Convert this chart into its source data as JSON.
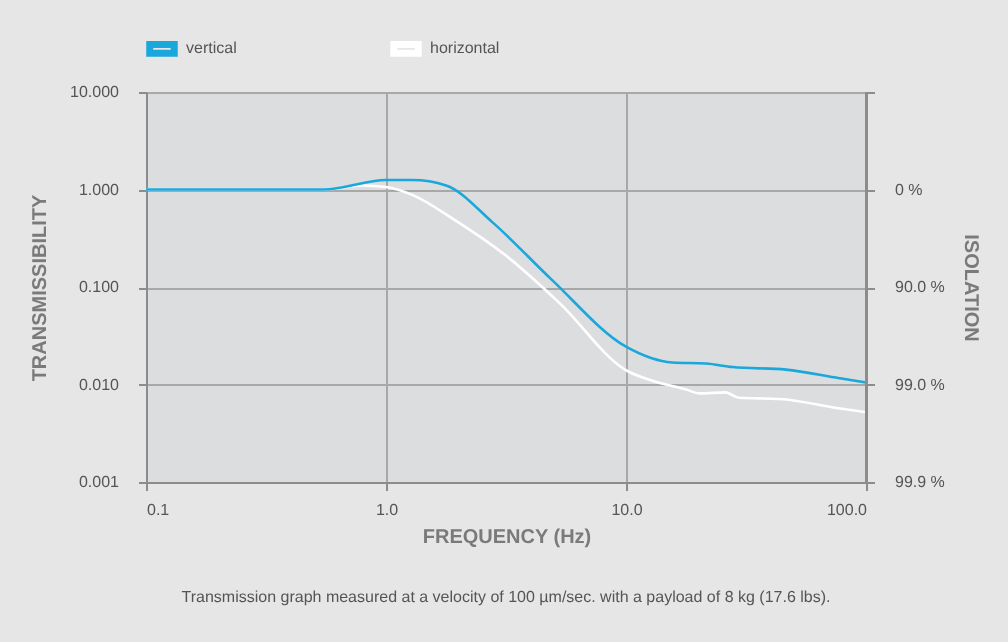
{
  "chart_data": {
    "type": "line",
    "xlabel": "FREQUENCY (Hz)",
    "ylabel": "TRANSMISSIBILITY",
    "y2label": "ISOLATION",
    "annotations": [
      "Transmission graph measured at a velocity of 100 µm/sec. with a payload of 8 kg (17.6 lbs)."
    ],
    "log": "xy",
    "grid": true,
    "legend": "top left",
    "line_style": "solid",
    "marker": "none",
    "xlim": [
      0.1,
      100
    ],
    "xticks": [
      {
        "value": 0.1,
        "label": "0.1"
      },
      {
        "value": 1,
        "label": "1.0"
      },
      {
        "value": 10,
        "label": "10.0"
      },
      {
        "value": 100,
        "label": "100.0"
      }
    ],
    "ylim": [
      0.001,
      10
    ],
    "yticks": [
      {
        "value": 0.001,
        "label": "0.001"
      },
      {
        "value": 0.01,
        "label": "0.010"
      },
      {
        "value": 0.1,
        "label": "0.100"
      },
      {
        "value": 1,
        "label": "1.000"
      },
      {
        "value": 10,
        "label": "10.000"
      }
    ],
    "y2_categories": [
      null,
      "0 %",
      "90.0 %",
      "99.0 %",
      "99.9 %"
    ],
    "series": [
      {
        "name": "vertical",
        "color": "#1aa7dc",
        "x": [
          0.1,
          0.55,
          1.0,
          1.29,
          1.78,
          2.78,
          4.9,
          10,
          15.6,
          21.5,
          27.8,
          46.4,
          77.4,
          100
        ],
        "values": [
          1,
          1,
          1.25,
          1.25,
          1.1,
          0.46,
          0.119,
          0.0244,
          0.0168,
          0.0164,
          0.0151,
          0.0142,
          0.0116,
          0.0105
        ]
      },
      {
        "name": "horizontal",
        "color": "#ffffff",
        "x": [
          0.1,
          0.55,
          0.8,
          1.0,
          1.3,
          1.9,
          3.16,
          5.3,
          10,
          12.9,
          17.8,
          20.3,
          26,
          29.5,
          43.6,
          77,
          100
        ],
        "values": [
          1,
          1,
          1.1,
          1.06,
          0.87,
          0.5,
          0.21,
          0.068,
          0.014,
          0.0109,
          0.0089,
          0.0081,
          0.0083,
          0.0073,
          0.0071,
          0.0057,
          0.0052
        ]
      }
    ]
  }
}
